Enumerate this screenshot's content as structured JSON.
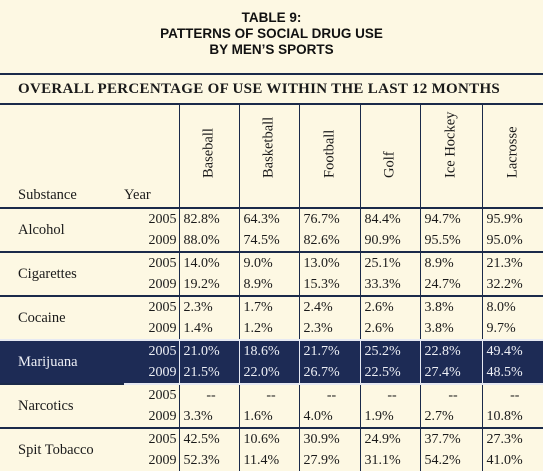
{
  "title": [
    "TABLE 9:",
    "PATTERNS OF SOCIAL DRUG USE",
    "BY MEN’S SPORTS"
  ],
  "subtitle": "OVERALL PERCENTAGE OF USE WITHIN THE LAST 12 MONTHS",
  "headers": {
    "substance": "Substance",
    "year": "Year",
    "sports": [
      "Baseball",
      "Basketball",
      "Football",
      "Golf",
      "Ice Hockey",
      "Lacrosse"
    ]
  },
  "rows": [
    {
      "substance": "Alcohol",
      "years": [
        {
          "year": "2005",
          "values": [
            "82.8%",
            "64.3%",
            "76.7%",
            "84.4%",
            "94.7%",
            "95.9%"
          ]
        },
        {
          "year": "2009",
          "values": [
            "88.0%",
            "74.5%",
            "82.6%",
            "90.9%",
            "95.5%",
            "95.0%"
          ]
        }
      ]
    },
    {
      "substance": "Cigarettes",
      "years": [
        {
          "year": "2005",
          "values": [
            "14.0%",
            "9.0%",
            "13.0%",
            "25.1%",
            "8.9%",
            "21.3%"
          ]
        },
        {
          "year": "2009",
          "values": [
            "19.2%",
            "8.9%",
            "15.3%",
            "33.3%",
            "24.7%",
            "32.2%"
          ]
        }
      ]
    },
    {
      "substance": "Cocaine",
      "years": [
        {
          "year": "2005",
          "values": [
            "2.3%",
            "1.7%",
            "2.4%",
            "2.6%",
            "3.8%",
            "8.0%"
          ]
        },
        {
          "year": "2009",
          "values": [
            "1.4%",
            "1.2%",
            "2.3%",
            "2.6%",
            "3.8%",
            "9.7%"
          ]
        }
      ]
    },
    {
      "substance": "Marijuana",
      "highlight": true,
      "years": [
        {
          "year": "2005",
          "values": [
            "21.0%",
            "18.6%",
            "21.7%",
            "25.2%",
            "22.8%",
            "49.4%"
          ]
        },
        {
          "year": "2009",
          "values": [
            "21.5%",
            "22.0%",
            "26.7%",
            "22.5%",
            "27.4%",
            "48.5%"
          ]
        }
      ]
    },
    {
      "substance": "Narcotics",
      "years": [
        {
          "year": "2005",
          "values": [
            "--",
            "--",
            "--",
            "--",
            "--",
            "--"
          ]
        },
        {
          "year": "2009",
          "values": [
            "3.3%",
            "1.6%",
            "4.0%",
            "1.9%",
            "2.7%",
            "10.8%"
          ]
        }
      ]
    },
    {
      "substance": "Spit Tobacco",
      "years": [
        {
          "year": "2005",
          "values": [
            "42.5%",
            "10.6%",
            "30.9%",
            "24.9%",
            "37.7%",
            "27.3%"
          ]
        },
        {
          "year": "2009",
          "values": [
            "52.3%",
            "11.4%",
            "27.9%",
            "31.1%",
            "54.2%",
            "41.0%"
          ]
        }
      ]
    }
  ],
  "colors": {
    "background": "#fdf8e3",
    "rule": "#1b2a4a",
    "highlight": "#1d2b55"
  }
}
